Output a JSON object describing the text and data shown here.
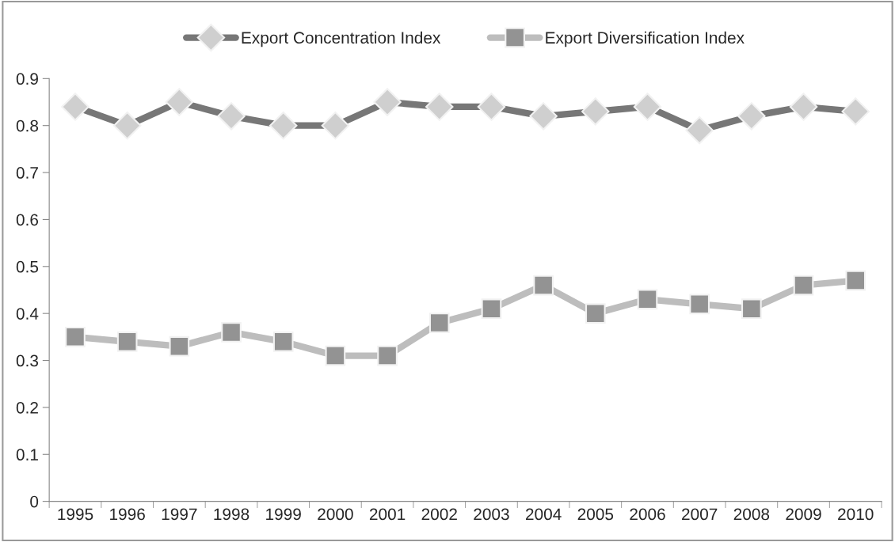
{
  "chart_data": {
    "type": "line",
    "categories": [
      "1995",
      "1996",
      "1997",
      "1998",
      "1999",
      "2000",
      "2001",
      "2002",
      "2003",
      "2004",
      "2005",
      "2006",
      "2007",
      "2008",
      "2009",
      "2010"
    ],
    "series": [
      {
        "name": "Export Concentration Index",
        "color": "#777777",
        "marker": "diamond",
        "values": [
          0.84,
          0.8,
          0.85,
          0.82,
          0.8,
          0.8,
          0.85,
          0.84,
          0.84,
          0.82,
          0.83,
          0.84,
          0.79,
          0.82,
          0.84,
          0.83
        ]
      },
      {
        "name": "Export Diversification Index",
        "color": "#bdbdbd",
        "marker": "square",
        "values": [
          0.35,
          0.34,
          0.33,
          0.36,
          0.34,
          0.31,
          0.31,
          0.38,
          0.41,
          0.46,
          0.4,
          0.43,
          0.42,
          0.41,
          0.46,
          0.47
        ]
      }
    ],
    "ylim": [
      0,
      0.9
    ],
    "yticks": [
      0,
      0.1,
      0.2,
      0.3,
      0.4,
      0.5,
      0.6,
      0.7,
      0.8,
      0.9
    ],
    "grid": false,
    "legend": "top",
    "line_style": "solid"
  }
}
